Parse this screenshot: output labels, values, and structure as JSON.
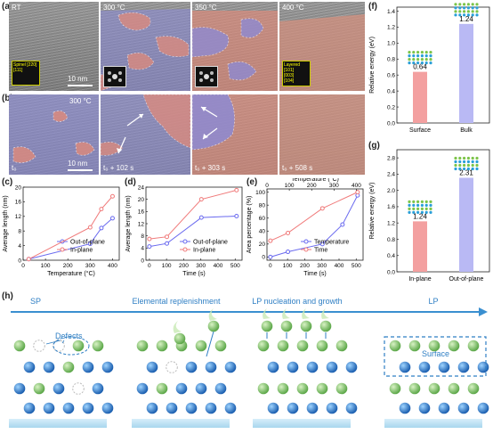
{
  "panels": {
    "a": "(a)",
    "b": "(b)",
    "c": "(c)",
    "d": "(d)",
    "e": "(e)",
    "f": "(f)",
    "g": "(g)",
    "h": "(h)"
  },
  "row_a": {
    "labels": [
      "RT",
      "300 °C",
      "350 °C",
      "400 °C"
    ],
    "scale": "10 nm",
    "inset_rt": "Spinel [220]\n[111]",
    "inset_layered": "Layered\n[101]\n[003]\n[104]"
  },
  "row_b": {
    "temp": "300 °C",
    "times": [
      "t₀",
      "t₀ + 102 s",
      "t₀ + 303 s",
      "t₀ + 508 s"
    ],
    "scale": "10 nm"
  },
  "colors": {
    "blue": "#6a6aef",
    "red": "#f07a7a",
    "spinel_tint": "#8b8fd6",
    "layered_tint": "#d79a8a"
  },
  "chart_data": [
    {
      "type": "line",
      "id": "c",
      "xlabel": "Temperature (°C)",
      "ylabel": "Average length (nm)",
      "x": [
        25,
        300,
        350,
        400
      ],
      "xticks": [
        0,
        100,
        200,
        300,
        400
      ],
      "yticks": [
        0,
        4,
        8,
        12,
        16,
        20
      ],
      "xlim": [
        0,
        430
      ],
      "ylim": [
        0,
        20
      ],
      "series": [
        {
          "name": "Out-of-plane",
          "values": [
            0.3,
            4.5,
            8.8,
            11.5
          ]
        },
        {
          "name": "In-plane",
          "values": [
            0.3,
            9,
            14,
            17.5
          ]
        }
      ],
      "legend": "bottom-right"
    },
    {
      "type": "line",
      "id": "d",
      "xlabel": "Time (s)",
      "ylabel": "Average length (nm)",
      "x": [
        0,
        102,
        303,
        508
      ],
      "xticks": [
        0,
        100,
        200,
        300,
        400,
        500
      ],
      "yticks": [
        0,
        4,
        8,
        12,
        16,
        20,
        24
      ],
      "xlim": [
        -20,
        540
      ],
      "ylim": [
        0,
        24
      ],
      "series": [
        {
          "name": "Out-of-plane",
          "values": [
            4.5,
            5.5,
            14,
            14.5
          ]
        },
        {
          "name": "In-plane",
          "values": [
            7,
            7.7,
            20,
            23
          ]
        }
      ],
      "legend": "bottom-right"
    },
    {
      "type": "line",
      "id": "e",
      "xlabel": "Time (s)",
      "x2label": "Temperature (°C)",
      "ylabel": "Area percentage (%)",
      "xticks": [
        0,
        100,
        200,
        300,
        400,
        500
      ],
      "x2ticks": [
        0,
        100,
        200,
        300,
        400
      ],
      "yticks": [
        0,
        20,
        40,
        60,
        80,
        100
      ],
      "xlim": [
        -20,
        540
      ],
      "ylim": [
        -5,
        105
      ],
      "series": [
        {
          "name": "Temperature",
          "x": [
            0,
            102,
            303,
            420,
            508
          ],
          "values": [
            0,
            8,
            20,
            50,
            95
          ]
        },
        {
          "name": "Time",
          "x": [
            0,
            102,
            303,
            508
          ],
          "values": [
            25,
            37,
            75,
            100
          ]
        }
      ],
      "legend": "bottom-right"
    },
    {
      "type": "bar",
      "id": "f",
      "categories": [
        "Surface",
        "Bulk"
      ],
      "values": [
        0.64,
        1.24
      ],
      "value_labels": [
        "0.64",
        "1.24"
      ],
      "ylabel": "Relative energy (eV)",
      "yticks": [
        0.0,
        0.2,
        0.4,
        0.6,
        0.8,
        1.0,
        1.2,
        1.4
      ],
      "ylim": [
        0,
        1.45
      ]
    },
    {
      "type": "bar",
      "id": "g",
      "categories": [
        "In-plane",
        "Out-of-plane"
      ],
      "values": [
        1.24,
        2.31
      ],
      "value_labels": [
        "1.24",
        "2.31"
      ],
      "ylabel": "Relative energy (eV)",
      "yticks": [
        0.0,
        0.4,
        0.8,
        1.2,
        1.6,
        2.0,
        2.4,
        2.8
      ],
      "ylim": [
        0,
        3.0
      ]
    }
  ],
  "schematic": {
    "stages": [
      "SP",
      "Elemental replenishment",
      "LP nucleation and growth",
      "LP"
    ],
    "defects": "Defects",
    "surface": "Surface"
  }
}
